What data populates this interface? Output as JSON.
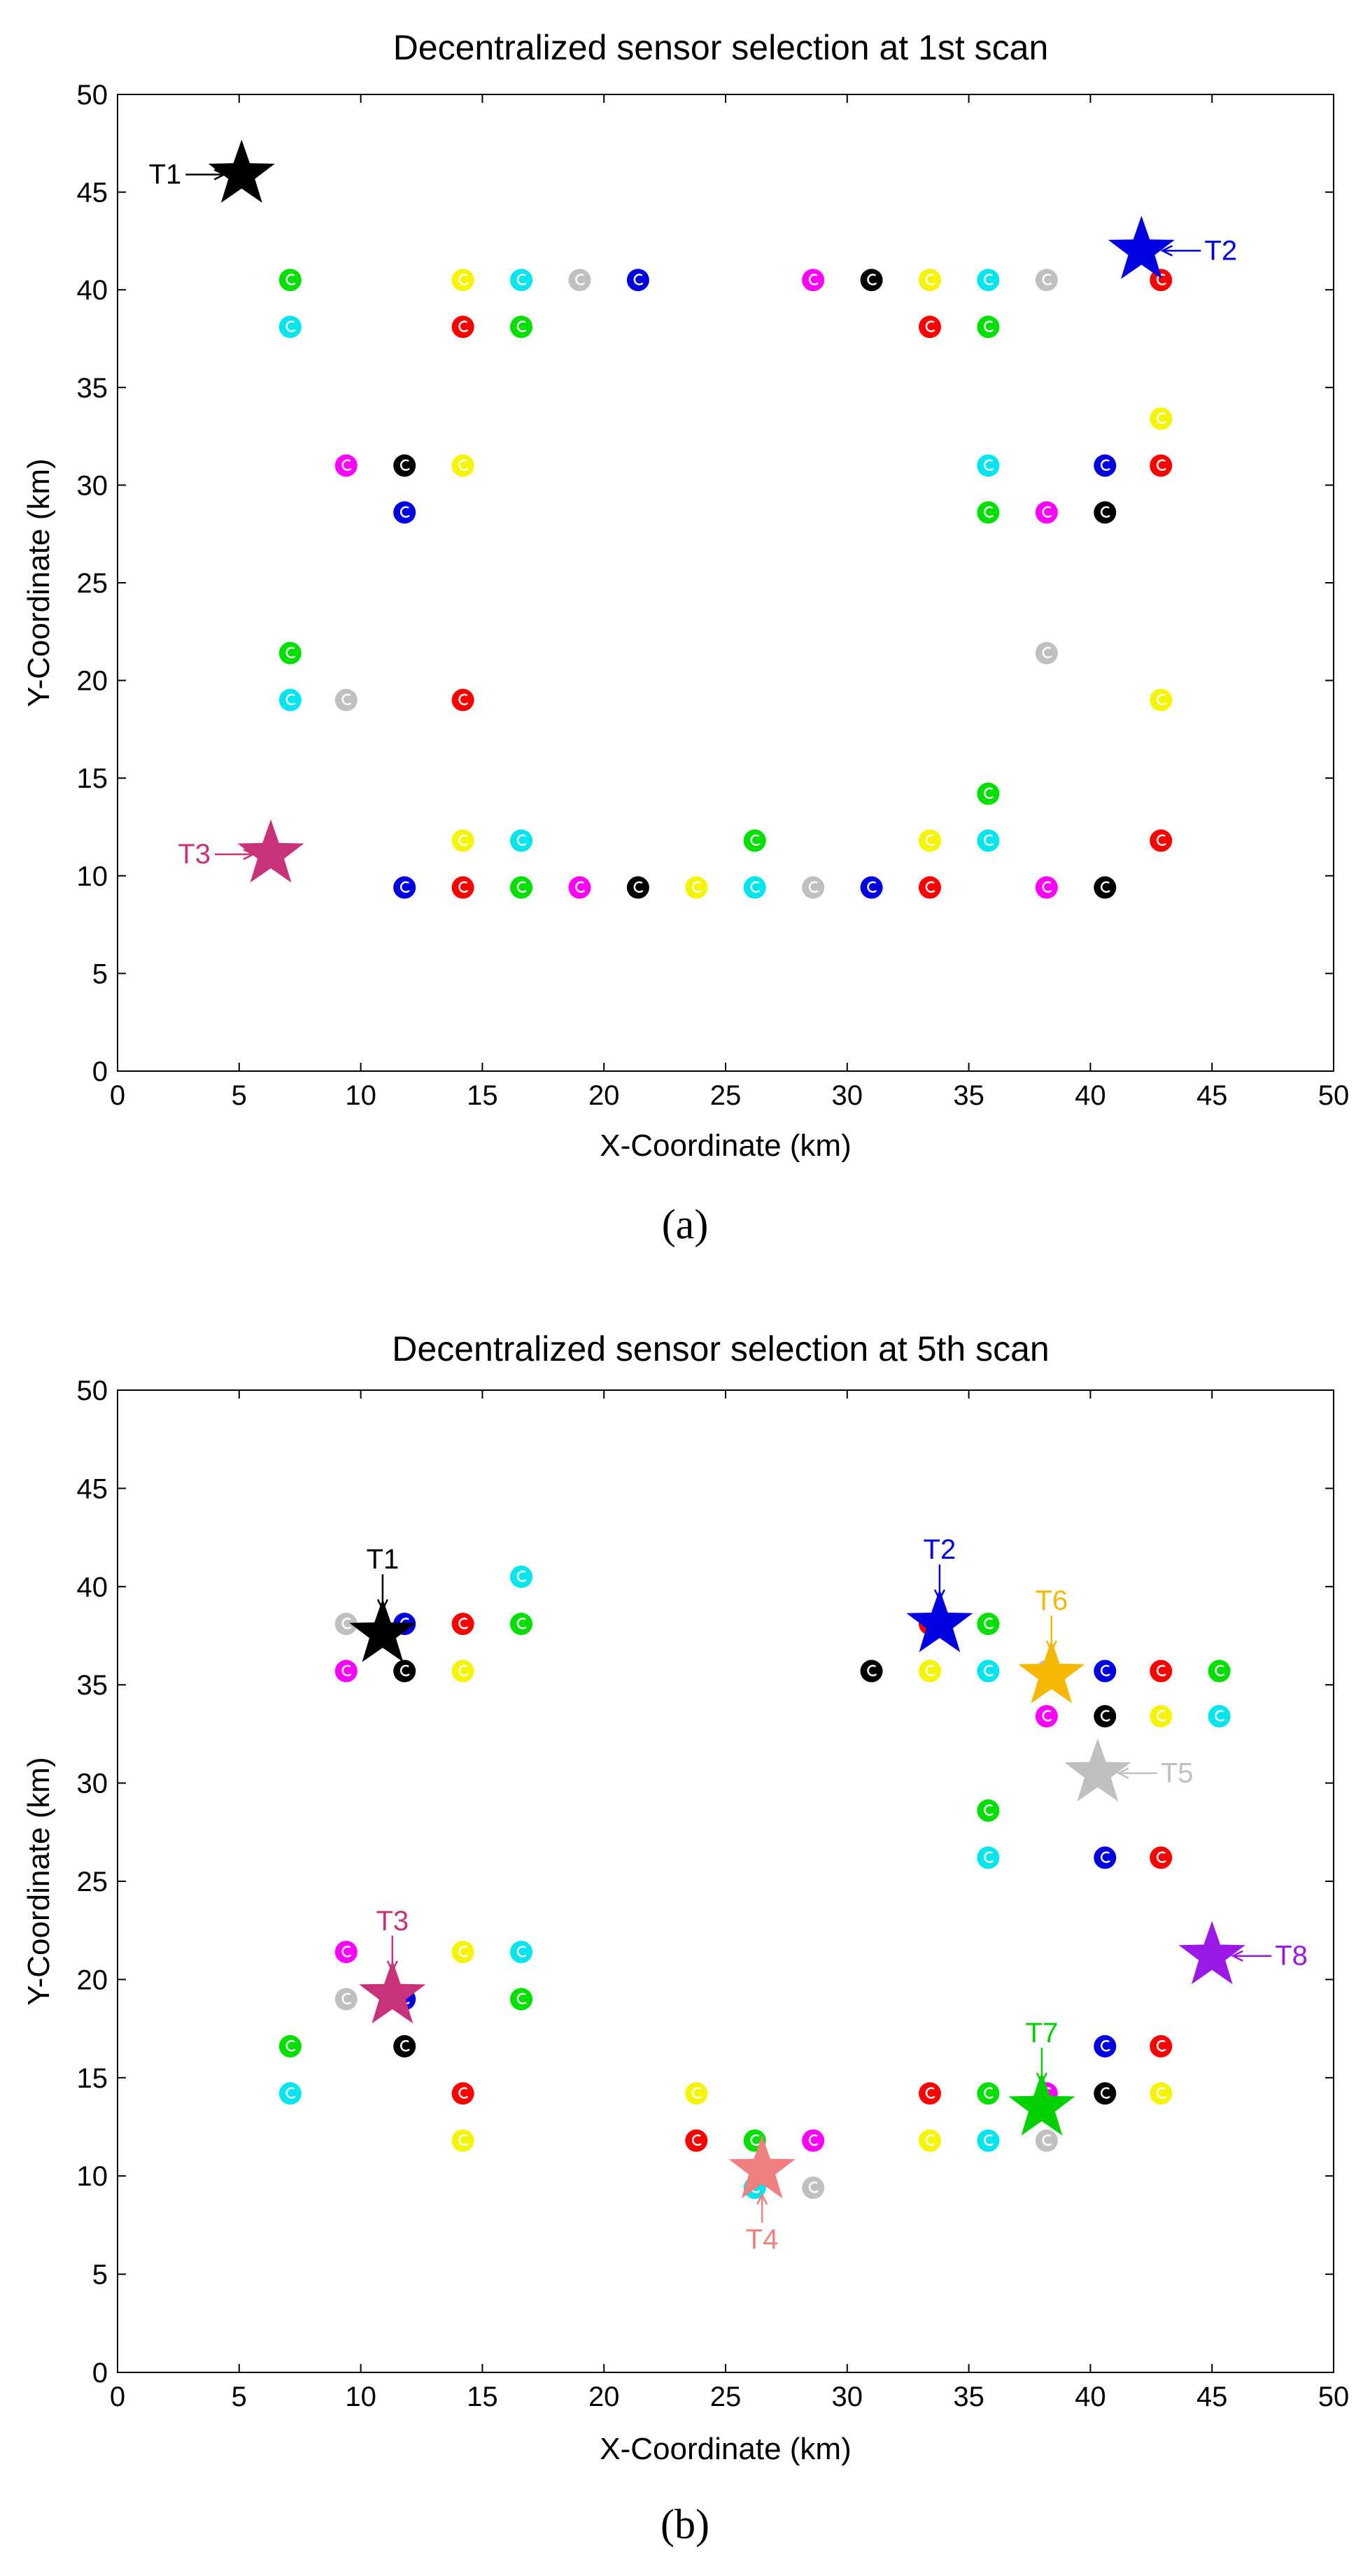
{
  "figure": {
    "sensor_colors": {
      "green": "#00e000",
      "cyan": "#00e5ee",
      "yellow": "#f5f500",
      "red": "#ff0000",
      "gray": "#c0c0c0",
      "blue": "#0000e0",
      "magenta": "#ff00ff",
      "black": "#000000"
    }
  },
  "chart_data": [
    {
      "id": "a",
      "type": "scatter",
      "title": "Decentralized sensor selection at 1st scan",
      "caption": "(a)",
      "xlabel": "X-Coordinate (km)",
      "ylabel": "Y-Coordinate (km)",
      "xlim": [
        0,
        50
      ],
      "ylim": [
        0,
        50
      ],
      "xticks": [
        "0",
        "5",
        "10",
        "15",
        "20",
        "25",
        "30",
        "35",
        "40",
        "45",
        "50"
      ],
      "yticks": [
        "0",
        "5",
        "10",
        "15",
        "20",
        "25",
        "30",
        "35",
        "40",
        "45",
        "50"
      ],
      "sensors": [
        {
          "x": 7.1,
          "y": 40.5,
          "c": "green"
        },
        {
          "x": 7.1,
          "y": 38.1,
          "c": "cyan"
        },
        {
          "x": 14.2,
          "y": 40.5,
          "c": "yellow"
        },
        {
          "x": 16.6,
          "y": 40.5,
          "c": "cyan"
        },
        {
          "x": 19.0,
          "y": 40.5,
          "c": "gray"
        },
        {
          "x": 21.4,
          "y": 40.5,
          "c": "blue"
        },
        {
          "x": 14.2,
          "y": 38.1,
          "c": "red"
        },
        {
          "x": 16.6,
          "y": 38.1,
          "c": "green"
        },
        {
          "x": 28.6,
          "y": 40.5,
          "c": "magenta"
        },
        {
          "x": 31.0,
          "y": 40.5,
          "c": "black"
        },
        {
          "x": 33.4,
          "y": 40.5,
          "c": "yellow"
        },
        {
          "x": 35.8,
          "y": 40.5,
          "c": "cyan"
        },
        {
          "x": 38.2,
          "y": 40.5,
          "c": "gray"
        },
        {
          "x": 42.9,
          "y": 40.5,
          "c": "red"
        },
        {
          "x": 33.4,
          "y": 38.1,
          "c": "red"
        },
        {
          "x": 35.8,
          "y": 38.1,
          "c": "green"
        },
        {
          "x": 42.9,
          "y": 33.4,
          "c": "yellow"
        },
        {
          "x": 9.4,
          "y": 31.0,
          "c": "magenta"
        },
        {
          "x": 11.8,
          "y": 31.0,
          "c": "black"
        },
        {
          "x": 14.2,
          "y": 31.0,
          "c": "yellow"
        },
        {
          "x": 11.8,
          "y": 28.6,
          "c": "blue"
        },
        {
          "x": 35.8,
          "y": 31.0,
          "c": "cyan"
        },
        {
          "x": 40.6,
          "y": 31.0,
          "c": "blue"
        },
        {
          "x": 42.9,
          "y": 31.0,
          "c": "red"
        },
        {
          "x": 35.8,
          "y": 28.6,
          "c": "green"
        },
        {
          "x": 38.2,
          "y": 28.6,
          "c": "magenta"
        },
        {
          "x": 40.6,
          "y": 28.6,
          "c": "black"
        },
        {
          "x": 7.1,
          "y": 21.4,
          "c": "green"
        },
        {
          "x": 7.1,
          "y": 19.0,
          "c": "cyan"
        },
        {
          "x": 9.4,
          "y": 19.0,
          "c": "gray"
        },
        {
          "x": 14.2,
          "y": 19.0,
          "c": "red"
        },
        {
          "x": 38.2,
          "y": 21.4,
          "c": "gray"
        },
        {
          "x": 42.9,
          "y": 19.0,
          "c": "yellow"
        },
        {
          "x": 35.8,
          "y": 14.2,
          "c": "green"
        },
        {
          "x": 14.2,
          "y": 11.8,
          "c": "yellow"
        },
        {
          "x": 16.6,
          "y": 11.8,
          "c": "cyan"
        },
        {
          "x": 26.2,
          "y": 11.8,
          "c": "green"
        },
        {
          "x": 33.4,
          "y": 11.8,
          "c": "yellow"
        },
        {
          "x": 35.8,
          "y": 11.8,
          "c": "cyan"
        },
        {
          "x": 42.9,
          "y": 11.8,
          "c": "red"
        },
        {
          "x": 11.8,
          "y": 9.4,
          "c": "blue"
        },
        {
          "x": 14.2,
          "y": 9.4,
          "c": "red"
        },
        {
          "x": 16.6,
          "y": 9.4,
          "c": "green"
        },
        {
          "x": 19.0,
          "y": 9.4,
          "c": "magenta"
        },
        {
          "x": 21.4,
          "y": 9.4,
          "c": "black"
        },
        {
          "x": 23.8,
          "y": 9.4,
          "c": "yellow"
        },
        {
          "x": 26.2,
          "y": 9.4,
          "c": "cyan"
        },
        {
          "x": 28.6,
          "y": 9.4,
          "c": "gray"
        },
        {
          "x": 31.0,
          "y": 9.4,
          "c": "blue"
        },
        {
          "x": 33.4,
          "y": 9.4,
          "c": "red"
        },
        {
          "x": 38.2,
          "y": 9.4,
          "c": "magenta"
        },
        {
          "x": 40.6,
          "y": 9.4,
          "c": "black"
        }
      ],
      "targets": [
        {
          "name": "T1",
          "x": 5.1,
          "y": 45.9,
          "color": "#000000",
          "arrow": "left"
        },
        {
          "name": "T2",
          "x": 42.1,
          "y": 42.0,
          "color": "#0000e0",
          "arrow": "right"
        },
        {
          "name": "T3",
          "x": 6.3,
          "y": 11.1,
          "color": "#c8327a",
          "arrow": "left"
        }
      ]
    },
    {
      "id": "b",
      "type": "scatter",
      "title": "Decentralized sensor selection at 5th scan",
      "caption": "(b)",
      "xlabel": "X-Coordinate (km)",
      "ylabel": "Y-Coordinate (km)",
      "xlim": [
        0,
        50
      ],
      "ylim": [
        0,
        50
      ],
      "xticks": [
        "0",
        "5",
        "10",
        "15",
        "20",
        "25",
        "30",
        "35",
        "40",
        "45",
        "50"
      ],
      "yticks": [
        "0",
        "5",
        "10",
        "15",
        "20",
        "25",
        "30",
        "35",
        "40",
        "45",
        "50"
      ],
      "sensors": [
        {
          "x": 9.4,
          "y": 38.1,
          "c": "gray"
        },
        {
          "x": 11.8,
          "y": 38.1,
          "c": "blue"
        },
        {
          "x": 14.2,
          "y": 38.1,
          "c": "red"
        },
        {
          "x": 16.6,
          "y": 40.5,
          "c": "cyan"
        },
        {
          "x": 16.6,
          "y": 38.1,
          "c": "green"
        },
        {
          "x": 9.4,
          "y": 35.7,
          "c": "magenta"
        },
        {
          "x": 11.8,
          "y": 35.7,
          "c": "black"
        },
        {
          "x": 14.2,
          "y": 35.7,
          "c": "yellow"
        },
        {
          "x": 33.4,
          "y": 38.1,
          "c": "red"
        },
        {
          "x": 35.8,
          "y": 38.1,
          "c": "green"
        },
        {
          "x": 31.0,
          "y": 35.7,
          "c": "black"
        },
        {
          "x": 33.4,
          "y": 35.7,
          "c": "yellow"
        },
        {
          "x": 35.8,
          "y": 35.7,
          "c": "cyan"
        },
        {
          "x": 38.2,
          "y": 35.7,
          "c": "gray"
        },
        {
          "x": 40.6,
          "y": 35.7,
          "c": "blue"
        },
        {
          "x": 42.9,
          "y": 35.7,
          "c": "red"
        },
        {
          "x": 45.3,
          "y": 35.7,
          "c": "green"
        },
        {
          "x": 38.2,
          "y": 33.4,
          "c": "magenta"
        },
        {
          "x": 40.6,
          "y": 33.4,
          "c": "black"
        },
        {
          "x": 42.9,
          "y": 33.4,
          "c": "yellow"
        },
        {
          "x": 45.3,
          "y": 33.4,
          "c": "cyan"
        },
        {
          "x": 35.8,
          "y": 28.6,
          "c": "green"
        },
        {
          "x": 35.8,
          "y": 26.2,
          "c": "cyan"
        },
        {
          "x": 40.6,
          "y": 26.2,
          "c": "blue"
        },
        {
          "x": 42.9,
          "y": 26.2,
          "c": "red"
        },
        {
          "x": 9.4,
          "y": 21.4,
          "c": "magenta"
        },
        {
          "x": 14.2,
          "y": 21.4,
          "c": "yellow"
        },
        {
          "x": 16.6,
          "y": 21.4,
          "c": "cyan"
        },
        {
          "x": 9.4,
          "y": 19.0,
          "c": "gray"
        },
        {
          "x": 11.8,
          "y": 19.0,
          "c": "blue"
        },
        {
          "x": 16.6,
          "y": 19.0,
          "c": "green"
        },
        {
          "x": 7.1,
          "y": 16.6,
          "c": "green"
        },
        {
          "x": 11.8,
          "y": 16.6,
          "c": "black"
        },
        {
          "x": 7.1,
          "y": 14.2,
          "c": "cyan"
        },
        {
          "x": 14.2,
          "y": 14.2,
          "c": "red"
        },
        {
          "x": 14.2,
          "y": 11.8,
          "c": "yellow"
        },
        {
          "x": 23.8,
          "y": 14.2,
          "c": "yellow"
        },
        {
          "x": 23.8,
          "y": 11.8,
          "c": "red"
        },
        {
          "x": 26.2,
          "y": 11.8,
          "c": "green"
        },
        {
          "x": 28.6,
          "y": 11.8,
          "c": "magenta"
        },
        {
          "x": 26.2,
          "y": 9.4,
          "c": "cyan"
        },
        {
          "x": 28.6,
          "y": 9.4,
          "c": "gray"
        },
        {
          "x": 33.4,
          "y": 14.2,
          "c": "red"
        },
        {
          "x": 35.8,
          "y": 14.2,
          "c": "green"
        },
        {
          "x": 38.2,
          "y": 14.2,
          "c": "magenta"
        },
        {
          "x": 40.6,
          "y": 16.6,
          "c": "blue"
        },
        {
          "x": 42.9,
          "y": 16.6,
          "c": "red"
        },
        {
          "x": 40.6,
          "y": 14.2,
          "c": "black"
        },
        {
          "x": 42.9,
          "y": 14.2,
          "c": "yellow"
        },
        {
          "x": 33.4,
          "y": 11.8,
          "c": "yellow"
        },
        {
          "x": 35.8,
          "y": 11.8,
          "c": "cyan"
        },
        {
          "x": 38.2,
          "y": 11.8,
          "c": "gray"
        }
      ],
      "targets": [
        {
          "name": "T1",
          "x": 10.9,
          "y": 37.6,
          "color": "#000000",
          "arrow": "above"
        },
        {
          "name": "T2",
          "x": 33.8,
          "y": 38.1,
          "color": "#0000e0",
          "arrow": "above"
        },
        {
          "name": "T6",
          "x": 38.4,
          "y": 35.5,
          "color": "#f5b800",
          "arrow": "above"
        },
        {
          "name": "T5",
          "x": 40.3,
          "y": 30.5,
          "color": "#c0c0c0",
          "arrow": "right"
        },
        {
          "name": "T3",
          "x": 11.3,
          "y": 19.2,
          "color": "#c8327a",
          "arrow": "above"
        },
        {
          "name": "T8",
          "x": 45.0,
          "y": 21.2,
          "color": "#9b19e6",
          "arrow": "right"
        },
        {
          "name": "T7",
          "x": 38.0,
          "y": 13.5,
          "color": "#00d000",
          "arrow": "above"
        },
        {
          "name": "T4",
          "x": 26.5,
          "y": 10.3,
          "color": "#f08080",
          "arrow": "below"
        }
      ]
    }
  ]
}
